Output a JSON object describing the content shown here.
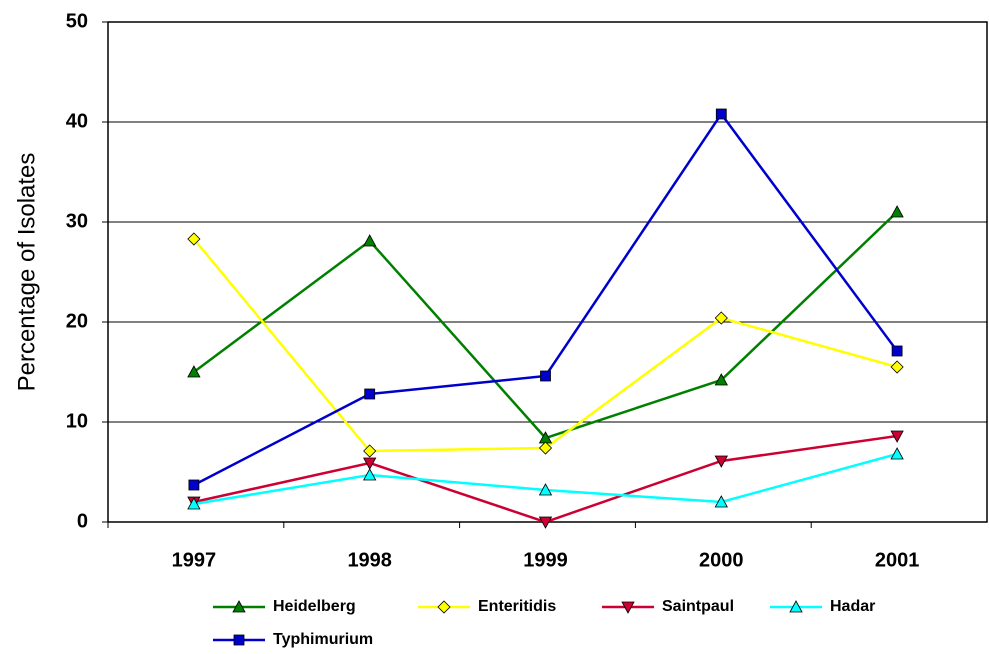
{
  "chart_data": {
    "type": "line",
    "y_label": "Percentage of Isolates",
    "categories": [
      "1997",
      "1998",
      "1999",
      "2000",
      "2001"
    ],
    "series": [
      {
        "name": "Heidelberg",
        "color": "#008000",
        "marker": "triangle-up",
        "values": [
          15,
          28.1,
          8.4,
          14.2,
          31
        ]
      },
      {
        "name": "Enteritidis",
        "color": "#ffff00",
        "marker": "diamond",
        "values": [
          28.3,
          7.1,
          7.4,
          20.4,
          15.5
        ]
      },
      {
        "name": "Saintpaul",
        "color": "#cc0033",
        "marker": "triangle-down",
        "values": [
          2,
          5.9,
          0,
          6.1,
          8.6
        ]
      },
      {
        "name": "Hadar",
        "color": "#00ffff",
        "marker": "triangle-up",
        "values": [
          1.8,
          4.7,
          3.2,
          2.0,
          6.8
        ]
      },
      {
        "name": "Typhimurium",
        "color": "#0000cc",
        "marker": "square",
        "values": [
          3.7,
          12.8,
          14.6,
          40.8,
          17.1
        ]
      }
    ],
    "ylim": [
      0,
      50
    ],
    "yticks": [
      0,
      10,
      20,
      30,
      40,
      50
    ],
    "grid": true,
    "legend": "bottom"
  }
}
